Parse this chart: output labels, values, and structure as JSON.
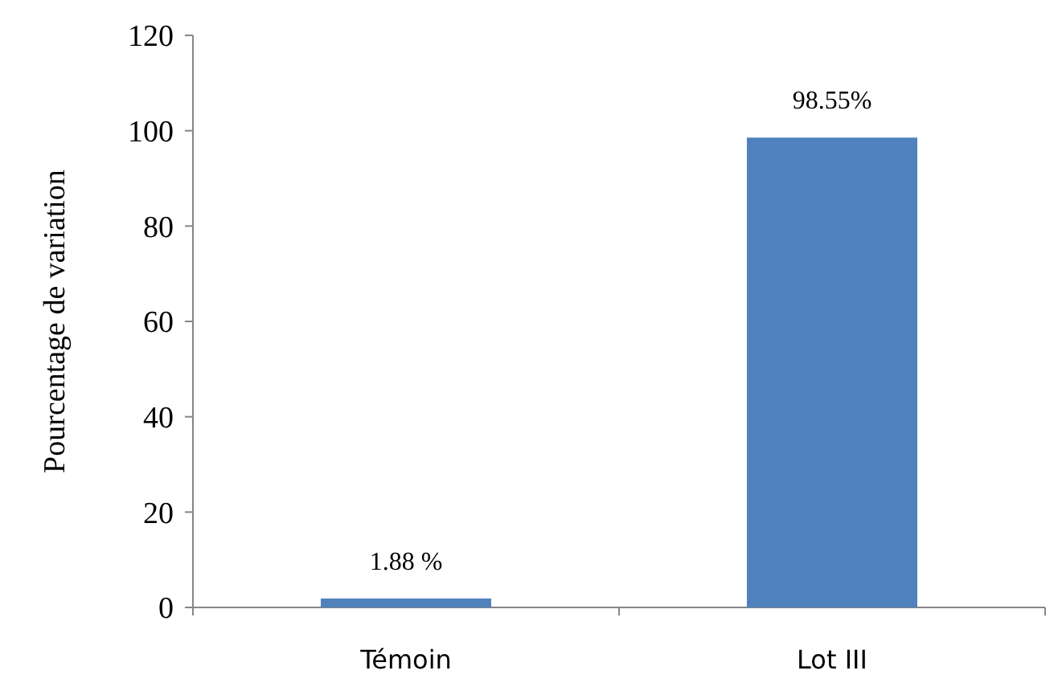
{
  "chart_data": {
    "type": "bar",
    "ylabel": "Pourcentage de variation",
    "categories": [
      "Témoin",
      "Lot III"
    ],
    "values": [
      1.88,
      98.55
    ],
    "color": "#4f81bd",
    "value_labels": [
      "1.88 %",
      "98.55%"
    ],
    "ylim": [
      0,
      120
    ],
    "yticks": [
      0,
      20,
      40,
      60,
      80,
      100,
      120
    ],
    "grid": false
  }
}
